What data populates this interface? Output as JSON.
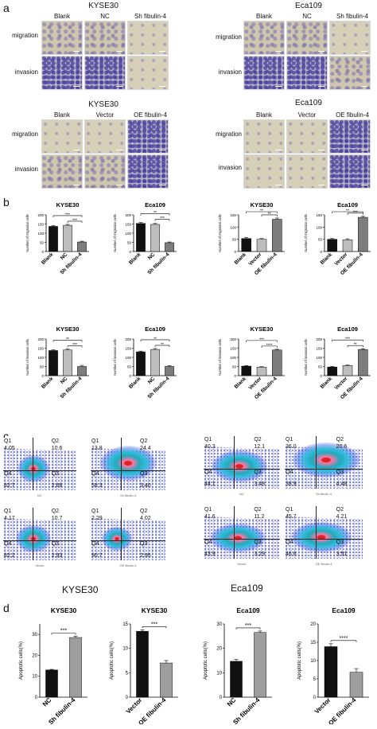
{
  "panel_labels": {
    "a": "a",
    "b": "b",
    "c": "c",
    "d": "d"
  },
  "panel_a": {
    "groups": [
      {
        "title": "KYSE30",
        "columns": [
          "Blank",
          "NC",
          "Sh fibulin-4"
        ],
        "rows": [
          "migration",
          "invasion"
        ]
      },
      {
        "title": "Eca109",
        "columns": [
          "Blank",
          "NC",
          "Sh fibulin-4"
        ],
        "rows": [
          "migration",
          "invasion"
        ]
      },
      {
        "title": "KYSE30",
        "columns": [
          "Blank",
          "Vector",
          "OE fibulin-4"
        ],
        "rows": [
          "migration",
          "invasion"
        ]
      },
      {
        "title": "Eca109",
        "columns": [
          "Blank",
          "Vector",
          "OE fibulin-4"
        ],
        "rows": [
          "migration",
          "invasion"
        ]
      }
    ]
  },
  "panel_c": {
    "cell_line_labels": [
      "KYSE30",
      "Eca109"
    ],
    "plots": [
      {
        "q1": "Q1",
        "q2": "Q2",
        "q3": "Q3",
        "q4": "Q4",
        "v1": "4.05",
        "v2": "10.6",
        "v3": "2.66",
        "v4": "82.7",
        "caption": "NC"
      },
      {
        "q1": "Q1",
        "q2": "Q2",
        "q3": "Q3",
        "q4": "Q4",
        "v1": "13.8",
        "v2": "24.4",
        "v3": "3.40",
        "v4": "58.3",
        "caption": "Sh fibulin-4"
      },
      {
        "q1": "Q1",
        "q2": "Q2",
        "q3": "Q3",
        "q4": "Q4",
        "v1": "4.17",
        "v2": "10.7",
        "v3": "2.93",
        "v4": "82.2",
        "caption": "Vector"
      },
      {
        "q1": "Q1",
        "q2": "Q2",
        "q3": "Q3",
        "q4": "Q4",
        "v1": "2.29",
        "v2": "4.02",
        "v3": "2.95",
        "v4": "90.7",
        "caption": "OE fibulin-4"
      },
      {
        "q1": "Q1",
        "q2": "Q2",
        "q3": "Q3",
        "q4": "Q4",
        "v1": "40.3",
        "v2": "12.1",
        "v3": "3.48",
        "v4": "44.1",
        "caption": "NC"
      },
      {
        "q1": "Q1",
        "q2": "Q2",
        "q3": "Q3",
        "q4": "Q4",
        "v1": "36.0",
        "v2": "20.6",
        "v3": "4.48",
        "v4": "38.9",
        "caption": "Sh fibulin-4"
      },
      {
        "q1": "Q1",
        "q2": "Q2",
        "q3": "Q3",
        "q4": "Q4",
        "v1": "41.6",
        "v2": "11.2",
        "v3": "3.29",
        "v4": "43.9",
        "caption": "Vector"
      },
      {
        "q1": "Q1",
        "q2": "Q2",
        "q3": "Q3",
        "q4": "Q4",
        "v1": "45.7",
        "v2": "4.21",
        "v3": "3.51",
        "v4": "46.6",
        "caption": "OE fibulin-4"
      }
    ]
  },
  "chart_data": [
    {
      "type": "bar",
      "id": "b-mig-kyse-sh",
      "title": "KYSE30",
      "ylabel": "Number of migration cells",
      "categories": [
        "Blank",
        "NC",
        "Sh fibulin-4"
      ],
      "values": [
        137,
        143,
        52
      ],
      "errors": [
        5,
        5,
        4
      ],
      "ylim": [
        0,
        200
      ],
      "yticks": [
        0,
        50,
        100,
        150,
        200
      ],
      "sig": [
        {
          "from": 0,
          "to": 2,
          "label": "***"
        },
        {
          "from": 1,
          "to": 2,
          "label": "***"
        }
      ]
    },
    {
      "type": "bar",
      "id": "b-mig-eca-sh",
      "title": "Eca109",
      "ylabel": "Number of migration cells",
      "categories": [
        "Blank",
        "NC",
        "Sh fibulin-4"
      ],
      "values": [
        153,
        148,
        48
      ],
      "errors": [
        5,
        5,
        4
      ],
      "ylim": [
        0,
        200
      ],
      "yticks": [
        0,
        50,
        100,
        150,
        200
      ],
      "sig": [
        {
          "from": 0,
          "to": 2,
          "label": "**"
        },
        {
          "from": 1,
          "to": 2,
          "label": "***"
        }
      ]
    },
    {
      "type": "bar",
      "id": "b-mig-kyse-oe",
      "title": "KYSE30",
      "ylabel": "Number of migration cells",
      "categories": [
        "Blank",
        "Vector",
        "OE fibulin-4"
      ],
      "values": [
        53,
        50,
        132
      ],
      "errors": [
        4,
        3,
        5
      ],
      "ylim": [
        0,
        150
      ],
      "yticks": [
        0,
        50,
        100,
        150
      ],
      "sig": [
        {
          "from": 0,
          "to": 2,
          "label": "**"
        },
        {
          "from": 1,
          "to": 2,
          "label": "**"
        }
      ]
    },
    {
      "type": "bar",
      "id": "b-mig-eca-oe",
      "title": "Eca109",
      "ylabel": "Number of migration cells",
      "categories": [
        "Blank",
        "Vector",
        "OE fibulin-4"
      ],
      "values": [
        50,
        48,
        140
      ],
      "errors": [
        3,
        4,
        4
      ],
      "ylim": [
        0,
        150
      ],
      "yticks": [
        0,
        50,
        100,
        150
      ],
      "sig": [
        {
          "from": 0,
          "to": 2,
          "label": "**"
        },
        {
          "from": 1,
          "to": 2,
          "label": "***"
        }
      ]
    },
    {
      "type": "bar",
      "id": "b-inv-kyse-sh",
      "title": "KYSE30",
      "ylabel": "Number of invasion cells",
      "categories": [
        "Blank",
        "NC",
        "Sh fibulin-4"
      ],
      "values": [
        137,
        140,
        50
      ],
      "errors": [
        4,
        5,
        6
      ],
      "ylim": [
        0,
        200
      ],
      "yticks": [
        0,
        50,
        100,
        150,
        200
      ],
      "sig": [
        {
          "from": 0,
          "to": 2,
          "label": "**"
        },
        {
          "from": 1,
          "to": 2,
          "label": "***"
        }
      ]
    },
    {
      "type": "bar",
      "id": "b-inv-eca-sh",
      "title": "Eca109",
      "ylabel": "Number of invasion cells",
      "categories": [
        "Blank",
        "NC",
        "Sh fibulin-4"
      ],
      "values": [
        130,
        143,
        50
      ],
      "errors": [
        4,
        5,
        5
      ],
      "ylim": [
        0,
        200
      ],
      "yticks": [
        0,
        50,
        100,
        150,
        200
      ],
      "sig": [
        {
          "from": 0,
          "to": 2,
          "label": "**"
        },
        {
          "from": 1,
          "to": 2,
          "label": "**"
        }
      ]
    },
    {
      "type": "bar",
      "id": "b-inv-kyse-oe",
      "title": "KYSE30",
      "ylabel": "Number of invasion cells",
      "categories": [
        "Blank",
        "Vector",
        "OE fibulin-4"
      ],
      "values": [
        52,
        46,
        140
      ],
      "errors": [
        3,
        3,
        4
      ],
      "ylim": [
        0,
        200
      ],
      "yticks": [
        0,
        50,
        100,
        150,
        200
      ],
      "sig": [
        {
          "from": 0,
          "to": 2,
          "label": "***"
        },
        {
          "from": 1,
          "to": 2,
          "label": "****"
        }
      ]
    },
    {
      "type": "bar",
      "id": "b-inv-eca-oe",
      "title": "Eca109",
      "ylabel": "Number of invasion cells",
      "categories": [
        "Blank",
        "Vector",
        "OE fibulin-4"
      ],
      "values": [
        47,
        55,
        143
      ],
      "errors": [
        4,
        3,
        4
      ],
      "ylim": [
        0,
        200
      ],
      "yticks": [
        0,
        50,
        100,
        150,
        200
      ],
      "sig": [
        {
          "from": 0,
          "to": 2,
          "label": "***"
        },
        {
          "from": 1,
          "to": 2,
          "label": "**"
        }
      ]
    },
    {
      "type": "bar",
      "id": "d-kyse-sh",
      "title": "KYSE30",
      "ylabel": "Apoptotic cells(%)",
      "categories": [
        "NC",
        "Sh fibulin-4"
      ],
      "values": [
        13,
        28.5
      ],
      "errors": [
        0.3,
        0.6
      ],
      "ylim": [
        0,
        35
      ],
      "yticks": [
        0,
        10,
        20,
        30
      ],
      "yticklabels": [
        "0",
        "10",
        "20",
        "30"
      ],
      "sig": [
        {
          "from": 0,
          "to": 1,
          "label": "***"
        }
      ]
    },
    {
      "type": "bar",
      "id": "d-kyse-oe",
      "title": "KYSE30",
      "ylabel": "Apoptotic cells(%)",
      "categories": [
        "Vector",
        "OE fibulin-4"
      ],
      "values": [
        13.5,
        7
      ],
      "errors": [
        0.3,
        0.5
      ],
      "ylim": [
        0,
        15
      ],
      "yticks": [
        0,
        5,
        10,
        15
      ],
      "yticklabels": [
        "0",
        "5",
        "10",
        "15"
      ],
      "sig": [
        {
          "from": 0,
          "to": 1,
          "label": "***"
        }
      ]
    },
    {
      "type": "bar",
      "id": "d-eca-sh",
      "title": "Eca109",
      "ylabel": "Apoptotic cells(%)",
      "categories": [
        "NC",
        "Sh fibulin-4"
      ],
      "values": [
        14.7,
        26.5
      ],
      "errors": [
        0.8,
        0.6
      ],
      "ylim": [
        0,
        30
      ],
      "yticks": [
        0,
        10,
        20,
        30
      ],
      "yticklabels": [
        "0",
        "10",
        "20",
        "30"
      ],
      "sig": [
        {
          "from": 0,
          "to": 1,
          "label": "***"
        }
      ]
    },
    {
      "type": "bar",
      "id": "d-eca-oe",
      "title": "Eca109",
      "ylabel": "Apoptotic cells(%)",
      "categories": [
        "Vector",
        "OE fibulin-4"
      ],
      "values": [
        13.8,
        6.8
      ],
      "errors": [
        0.8,
        1.0
      ],
      "ylim": [
        0,
        20
      ],
      "yticks": [
        0,
        5,
        10,
        15,
        20
      ],
      "yticklabels": [
        "0",
        "5",
        "10",
        "15",
        "20"
      ],
      "sig": [
        {
          "from": 0,
          "to": 1,
          "label": "****"
        }
      ]
    }
  ]
}
